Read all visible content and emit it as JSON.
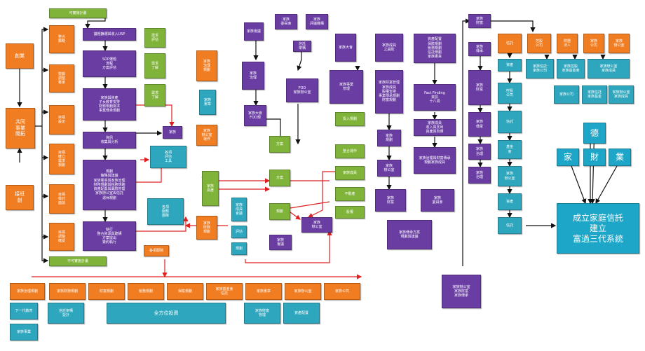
{
  "colors": {
    "orange": "#f07d22",
    "green": "#7fb33a",
    "purple": "#6a3da3",
    "teal": "#2ea6bd",
    "arrow_red": "#e02020",
    "arrow_black": "#111111"
  },
  "left": {
    "a1": "創業",
    "a2": "共同\n事業\n開拓",
    "a3": "接班\n創"
  },
  "colA": [
    "整合\n策略",
    "營銷\n調整\n專家",
    "目標\n設定",
    "目標\n確立\n需求\n規劃",
    "目標\n檢討\n面談",
    "目標\n調整\n確認"
  ],
  "top_green": "可實施計畫",
  "bottom_green": "不可實施計畫",
  "colB": [
    "議題篩選與收入USP",
    "SOP選題\n流程\n方案評估",
    "家族與資產\n子女教育安排\n財務規劃需求\n事業傳承規劃",
    "資訊\n收集與分析",
    "規劃\n策略與建議\n家族憲章與家族治理\n財務規劃與稅務規劃\n資產配置與風險管理\n家族辦公室與信託\n退休規劃",
    "執行\n整合資源與建構\n方案提出\n簽約執行"
  ],
  "colC": [
    "需求\n評估",
    "需求\n了解",
    "需求\n了解"
  ],
  "mid_purple": "家族",
  "mid_teal1": "各項\n評估\n工具",
  "mid_teal2": "各項\n服務\n團隊",
  "mid_orange1": "家族\n治理\n規劃",
  "mid_orange2": "家族\n辦公室\n運作",
  "mid_orange3": "家族\n財務\n規劃",
  "mid_green1": "家族\n憲章",
  "mid_green2": "家族\n資產",
  "tinyA": "家族\n成員\n會議",
  "tinyB": "評估",
  "tinyC": "規劃",
  "legal": "各項服務",
  "p_top": [
    "家族\n委員會",
    "家族\n評議機構"
  ],
  "p_cmte": "家族會議",
  "p_c2": "家族\n治理",
  "p_c3": "家族大會\nFOD規",
  "p_fod": "FOD\n家族辦公室",
  "p_sq": "信託\n架構",
  "greens_mid": [
    "方案",
    "方案",
    "規劃",
    "分析",
    "架構"
  ],
  "g_right": [
    "投入規劃",
    "整合運作",
    "家族成員",
    "不動產",
    "股權"
  ],
  "o_mid": [
    "家族\n會議",
    "家族\n辦公室"
  ],
  "p_ctr": [
    "家族大會",
    "家族事業\n管理",
    "相關\n規劃",
    "家族\n財富"
  ],
  "p_rc": [
    "家族成員\n之識別",
    "家族財富管理\n家族成員\n股權安排\n事業傳承規劃\n財富規劃"
  ],
  "p_ff": "Fact Finding\n資訊\n十八項",
  "p_tx": "家族成員\n收入與支出\n資產與負債",
  "p_sm": [
    "家族\n規劃",
    "家族\n辦公室",
    "家族\n財富",
    "家族\n委員會"
  ],
  "p_list": "資產配置\n保險規劃\n稅務規劃\n信託規劃\n家族憲章",
  "p_ss": "家族治理與財富傳承\n規劃家族成員",
  "p_bt": "家族傳承方案\n規劃與建議",
  "p_chain": [
    "家族\n財富",
    "家族\n傳承",
    "家族\n治理"
  ],
  "p_conn": "家族辦公室\n家族財富\n家族傳承",
  "p_sr": [
    "家族\n財富",
    "家族\n傳承",
    "家族\n治理"
  ],
  "t_right": [
    "資產",
    "控股\n公司",
    "信託",
    "基金\n會",
    "家族\n辦公室"
  ],
  "o_rtop": [
    "信託",
    "控股\n公司",
    "財團\n法人",
    "家族\n公司",
    "家族\n辦公室"
  ],
  "t_rowR": [
    "家族信託\n家族公司",
    "家族控股\n家族基金會",
    "家族辦公室\n家族成員"
  ],
  "t_ul": [
    "家族公司",
    "家族信託\n家族基金",
    "家族辦公室\n家族成員"
  ],
  "triad": {
    "top": "德",
    "left": "家",
    "center": "財",
    "right": "業"
  },
  "final": "成立家庭信託\n建立\n富過三代系統",
  "bottom_orange": [
    "家族治理規劃",
    "家族財務規劃",
    "財富規劃",
    "稅務規劃",
    "保險規劃",
    "家族基金會\n信託",
    "家族憲章",
    "家族辦公室",
    "家族公司"
  ],
  "bottom_teal": [
    "下一代教育",
    "信託架構\n設計",
    "全方位投資",
    "家族財富\n管理",
    "資產配置"
  ],
  "bottom_teal_single": "家族事業",
  "bottom_purple": "家族信託\n家族傳承\n家族治理"
}
